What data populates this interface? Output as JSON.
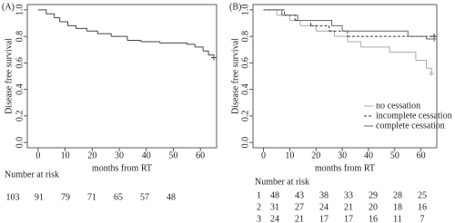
{
  "chart_data": [
    {
      "type": "step",
      "panel_label": "(A)",
      "ylabel": "Disease free survival",
      "xlabel": "months from RT",
      "xlim": [
        -4,
        66
      ],
      "ylim": [
        -0.04,
        1.04
      ],
      "xticks": [
        0,
        10,
        20,
        30,
        40,
        50,
        60
      ],
      "yticks": [
        {
          "value": 0,
          "label": "0.0"
        },
        0.2,
        0.4,
        0.6,
        0.8,
        {
          "value": 1,
          "label": "1.0"
        }
      ],
      "series": [
        {
          "color": "#444444",
          "dashed": false,
          "x": [
            0,
            3,
            6,
            8,
            11,
            14,
            18,
            22,
            27,
            33,
            38,
            45,
            55,
            58,
            61,
            63,
            65
          ],
          "values": [
            1,
            0.97,
            0.94,
            0.91,
            0.88,
            0.86,
            0.84,
            0.82,
            0.8,
            0.77,
            0.76,
            0.75,
            0.74,
            0.72,
            0.69,
            0.66,
            0.64
          ]
        }
      ],
      "risk_table": {
        "title": "Number at risk",
        "rows": [
          {
            "values": [
              103,
              91,
              79,
              71,
              65,
              57,
              48
            ]
          }
        ]
      }
    },
    {
      "type": "step",
      "panel_label": "(B)",
      "ylabel": "Disease free survival",
      "xlabel": "months from RT",
      "xlim": [
        -4,
        66
      ],
      "ylim": [
        -0.04,
        1.04
      ],
      "xticks": [
        0,
        10,
        20,
        30,
        40,
        50,
        60
      ],
      "yticks": [
        {
          "value": 0,
          "label": "0.0"
        },
        0.2,
        0.4,
        0.6,
        0.8,
        {
          "value": 1,
          "label": "1.0"
        }
      ],
      "series": [
        {
          "name": "no cessation",
          "color": "#aaaaaa",
          "dashed": false,
          "x": [
            0,
            5,
            10,
            14,
            20,
            27,
            32,
            37,
            48,
            58,
            62,
            64
          ],
          "values": [
            1,
            0.96,
            0.92,
            0.88,
            0.84,
            0.8,
            0.76,
            0.72,
            0.68,
            0.62,
            0.56,
            0.52
          ]
        },
        {
          "name": "incomplete cessation",
          "color": "#333333",
          "dashed": true,
          "x": [
            0,
            8,
            12,
            18,
            25,
            32,
            65
          ],
          "values": [
            1,
            0.96,
            0.92,
            0.88,
            0.84,
            0.8,
            0.8
          ]
        },
        {
          "name": "complete cessation",
          "color": "#666666",
          "dashed": false,
          "x": [
            0,
            7,
            13,
            26,
            30,
            55,
            62,
            65
          ],
          "values": [
            1,
            0.96,
            0.92,
            0.88,
            0.84,
            0.8,
            0.78,
            0.78
          ]
        }
      ],
      "legend": "lower right",
      "risk_table": {
        "title": "Number at risk",
        "rows": [
          {
            "label": "1",
            "values": [
              48,
              43,
              38,
              33,
              29,
              28,
              25
            ]
          },
          {
            "label": "2",
            "values": [
              31,
              27,
              24,
              21,
              20,
              18,
              16
            ]
          },
          {
            "label": "3",
            "values": [
              24,
              21,
              17,
              17,
              16,
              11,
              7
            ]
          }
        ]
      }
    }
  ]
}
